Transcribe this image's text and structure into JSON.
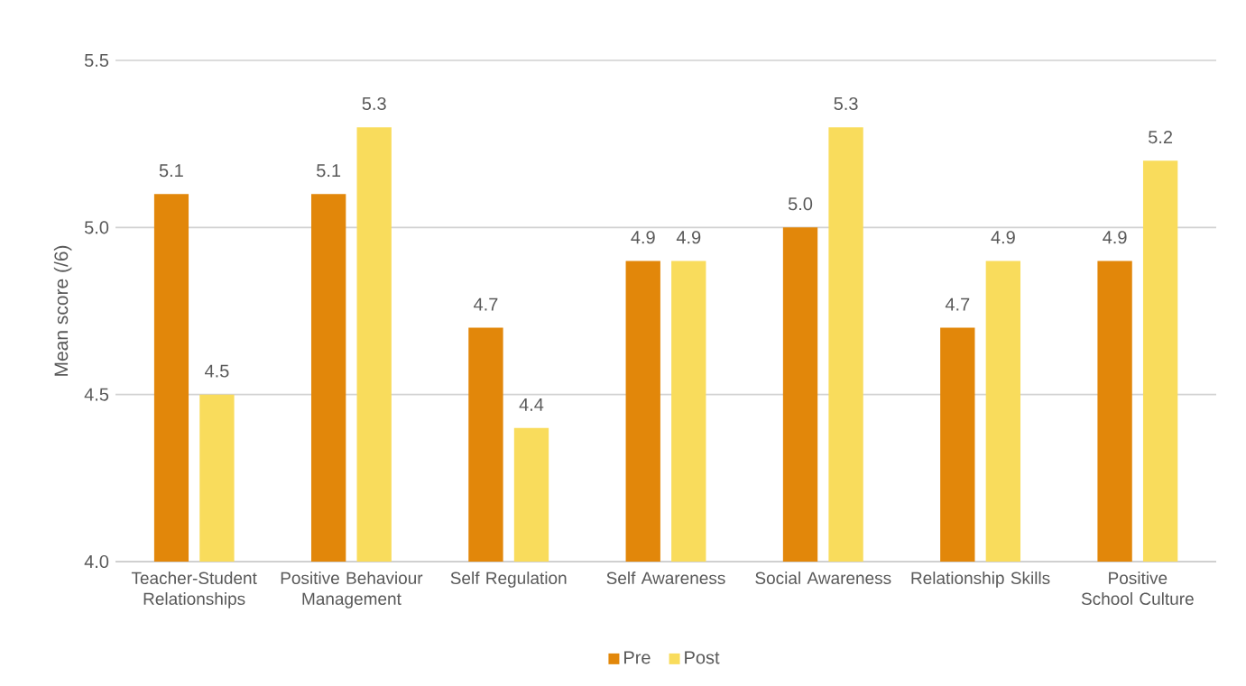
{
  "chart_data": {
    "type": "bar",
    "ylabel": "Mean score (/6)",
    "categories": [
      "Teacher-Student Relationships",
      "Positive Behaviour Management",
      "Self Regulation",
      "Self Awareness",
      "Social Awareness",
      "Relationship Skills",
      "Positive School Culture"
    ],
    "series": [
      {
        "name": "Pre",
        "color": "#e2870a",
        "values": [
          5.1,
          5.1,
          4.7,
          4.9,
          5.0,
          4.7,
          4.9
        ],
        "value_labels": [
          "5.1",
          "5.1",
          "4.7",
          "4.9",
          "5.0",
          "4.7",
          "4.9"
        ]
      },
      {
        "name": "Post",
        "color": "#f9dc5c",
        "values": [
          4.5,
          5.3,
          4.4,
          4.9,
          5.3,
          4.9,
          5.2
        ],
        "value_labels": [
          "4.5",
          "5.3",
          "4.4",
          "4.9",
          "5.3",
          "4.9",
          "5.2"
        ]
      }
    ],
    "ylim": [
      4.0,
      5.5
    ],
    "yticks": [
      {
        "value": 4.0,
        "label": "4.0"
      },
      {
        "value": 4.5,
        "label": "4.5"
      },
      {
        "value": 5.0,
        "label": "5.0"
      },
      {
        "value": 5.5,
        "label": "5.5"
      }
    ],
    "grid": "y",
    "legend": "bottom"
  }
}
